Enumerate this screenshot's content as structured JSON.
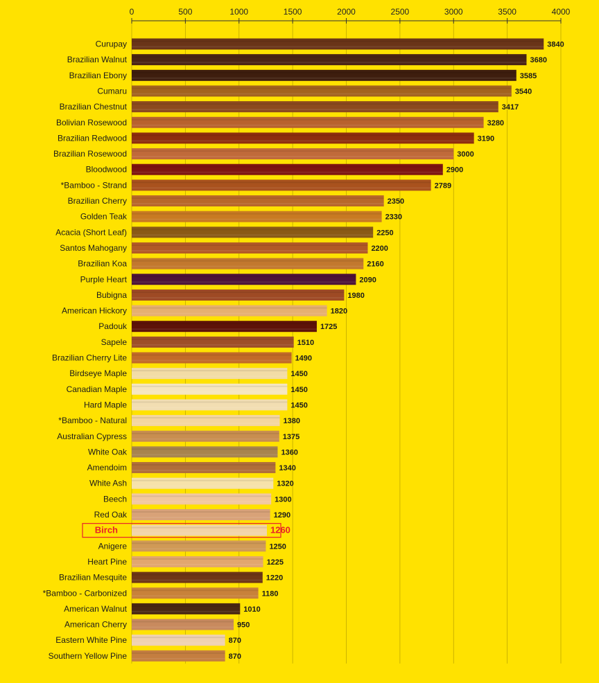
{
  "chart_data": {
    "type": "bar",
    "orientation": "horizontal",
    "title": "",
    "xlabel": "",
    "ylabel": "",
    "xlim": [
      0,
      4000
    ],
    "ticks": [
      0,
      500,
      1000,
      1500,
      2000,
      2500,
      3000,
      3500,
      4000
    ],
    "tick_labels": [
      "0",
      "500",
      "1000",
      "1500",
      "2000",
      "2500",
      "3000",
      "3500",
      "4000"
    ],
    "grid": true,
    "highlight_index": 31,
    "colors": {
      "background": "#FFE200",
      "highlight": "#E8202A",
      "gridline": "#8a7a00"
    },
    "categories": [
      "Curupay",
      "Brazilian Walnut",
      "Brazilian Ebony",
      "Cumaru",
      "Brazilian Chestnut",
      "Bolivian Rosewood",
      "Brazilian Redwood",
      "Brazilian Rosewood",
      "Bloodwood",
      "*Bamboo - Strand",
      "Brazilian Cherry",
      "Golden Teak",
      "Acacia (Short Leaf)",
      "Santos Mahogany",
      "Brazilian Koa",
      "Purple Heart",
      "Bubigna",
      "American Hickory",
      "Padouk",
      "Sapele",
      "Brazilian Cherry Lite",
      "Birdseye Maple",
      "Canadian Maple",
      "Hard Maple",
      "*Bamboo - Natural",
      "Australian Cypress",
      "White Oak",
      "Amendoim",
      "White Ash",
      "Beech",
      "Red Oak",
      "Birch",
      "Anigere",
      "Heart Pine",
      "Brazilian Mesquite",
      "*Bamboo - Carbonized",
      "American Walnut",
      "American Cherry",
      "Eastern White Pine",
      "Southern Yellow Pine"
    ],
    "values": [
      3840,
      3680,
      3585,
      3540,
      3417,
      3280,
      3190,
      3000,
      2900,
      2789,
      2350,
      2330,
      2250,
      2200,
      2160,
      2090,
      1980,
      1820,
      1725,
      1510,
      1490,
      1450,
      1450,
      1450,
      1380,
      1375,
      1360,
      1340,
      1320,
      1300,
      1290,
      1260,
      1250,
      1225,
      1220,
      1180,
      1010,
      950,
      870,
      870
    ],
    "value_labels": [
      "3840",
      "3680",
      "3585",
      "3540",
      "3417",
      "3280",
      "3190",
      "3000",
      "2900",
      "2789",
      "2350",
      "2330",
      "2250",
      "2200",
      "2160",
      "2090",
      "1980",
      "1820",
      "1725",
      "1510",
      "1490",
      "1450",
      "1450",
      "1450",
      "1380",
      "1375",
      "1360",
      "1340",
      "1320",
      "1300",
      "1290",
      "1260",
      "1250",
      "1225",
      "1220",
      "1180",
      "1010",
      "950",
      "870",
      "870"
    ],
    "bar_colors": [
      "#6A3418",
      "#4A2414",
      "#3E1E0E",
      "#A3621E",
      "#8C4A1E",
      "#B8622E",
      "#8E2E0E",
      "#C06A3A",
      "#7E1410",
      "#A9521E",
      "#B8682A",
      "#C87A22",
      "#8A5A16",
      "#B25A26",
      "#C2782E",
      "#4E1438",
      "#9E4A24",
      "#E6B070",
      "#5E1208",
      "#9E4E28",
      "#C26A28",
      "#F2DCA6",
      "#F6E6BE",
      "#F2DEB2",
      "#F4D6A0",
      "#C88E50",
      "#A8844E",
      "#B06E3A",
      "#F6E2AA",
      "#F2C8A0",
      "#D8A278",
      "#F2D4A8",
      "#D09A56",
      "#E2A66E",
      "#6E3616",
      "#C8823A",
      "#4A2812",
      "#C88A5E",
      "#F0D2B0",
      "#C47E40"
    ]
  }
}
